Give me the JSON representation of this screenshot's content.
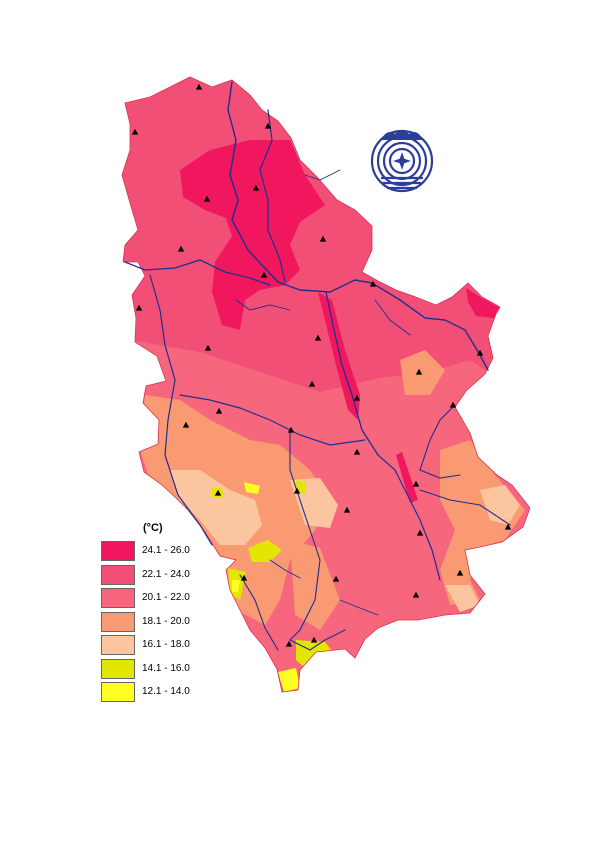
{
  "legend": {
    "unit": "(°C)",
    "classes": [
      {
        "label": "24.1 - 26.0",
        "color": "#f0175f"
      },
      {
        "label": "22.1 - 24.0",
        "color": "#f24f77"
      },
      {
        "label": "20.1 - 22.0",
        "color": "#f6677d"
      },
      {
        "label": "18.1 - 20.0",
        "color": "#f99a73"
      },
      {
        "label": "16.1 - 18.0",
        "color": "#fbc5a0"
      },
      {
        "label": "14.1 - 16.0",
        "color": "#e3e600"
      },
      {
        "label": "12.1 - 14.0",
        "color": "#ffff22"
      }
    ]
  },
  "colors": {
    "river": "#1f2f8f",
    "station": "#000000",
    "logo": "#2c3e9a"
  },
  "icons": {
    "station": "triangle-marker-icon",
    "logo": "meteorological-service-emblem-icon"
  }
}
